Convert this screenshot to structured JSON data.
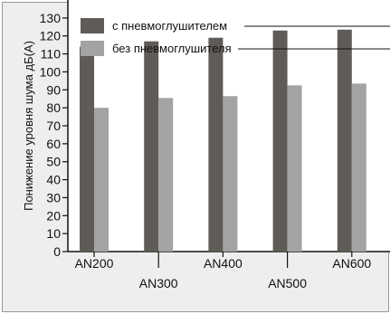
{
  "chart_data": {
    "type": "bar",
    "categories": [
      "AN200",
      "AN300",
      "AN400",
      "AN500",
      "AN600"
    ],
    "series": [
      {
        "name": "с пневмоглушителем",
        "values": [
          114,
          117,
          119,
          123,
          123.5
        ],
        "color": "#5f5b57"
      },
      {
        "name": "без пневмоглушителя",
        "values": [
          80,
          85.5,
          86.5,
          92.5,
          93.5
        ],
        "color": "#a3a3a3"
      }
    ],
    "title": "",
    "xlabel": "",
    "ylabel": "Понижение уровня шума дБ(А)",
    "ylim": [
      0,
      140
    ],
    "yticks": [
      0,
      10,
      20,
      30,
      40,
      50,
      60,
      70,
      80,
      90,
      100,
      110,
      120,
      130
    ],
    "grid": false,
    "legend_position": "top"
  }
}
